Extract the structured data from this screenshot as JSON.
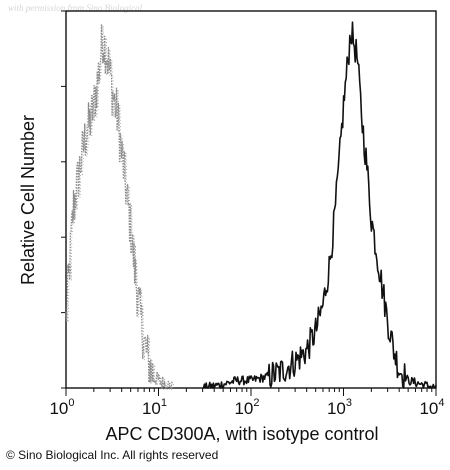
{
  "watermark": "with permission from Sino Biological",
  "copyright": "© Sino Biological Inc. All rights reserved",
  "chart_data": {
    "type": "area",
    "title": "",
    "xlabel": "APC CD300A, with isotype control",
    "ylabel": "Relative Cell Number",
    "xscale": "log",
    "xlim": [
      1,
      10000
    ],
    "ylim": [
      0,
      100
    ],
    "x_tick_labels": [
      {
        "value": 1,
        "base": "10",
        "exp": "0"
      },
      {
        "value": 10,
        "base": "10",
        "exp": "1"
      },
      {
        "value": 100,
        "base": "10",
        "exp": "2"
      },
      {
        "value": 1000,
        "base": "10",
        "exp": "3"
      },
      {
        "value": 10000,
        "base": "10",
        "exp": "4"
      }
    ],
    "y_ticks": [
      0,
      20,
      40,
      60,
      80,
      100
    ],
    "grid": false,
    "series": [
      {
        "style": "gray-stippled",
        "color": "#8a8a8a",
        "x": [
          1.0,
          1.2,
          1.4,
          1.6,
          1.8,
          2.0,
          2.2,
          2.5,
          2.8,
          3.2,
          3.6,
          4.0,
          4.5,
          5.0,
          5.6,
          6.3,
          7.0,
          8.0,
          9.0,
          10.0,
          12.0,
          14.0
        ],
        "y": [
          18,
          48,
          58,
          66,
          70,
          75,
          82,
          93,
          88,
          78,
          72,
          62,
          52,
          42,
          30,
          20,
          12,
          6,
          3,
          2,
          1,
          0
        ]
      },
      {
        "style": "black-solid",
        "color": "#111111",
        "x": [
          30,
          50,
          70,
          100,
          150,
          200,
          300,
          400,
          500,
          600,
          700,
          800,
          900,
          1000,
          1100,
          1200,
          1400,
          1600,
          1800,
          2000,
          2500,
          3000,
          3500,
          4000,
          5000,
          7000,
          10000
        ],
        "y": [
          0,
          1,
          2,
          2,
          3,
          4,
          7,
          10,
          15,
          22,
          32,
          45,
          60,
          75,
          85,
          95,
          88,
          70,
          58,
          45,
          30,
          18,
          10,
          5,
          2,
          1,
          0
        ]
      }
    ]
  }
}
